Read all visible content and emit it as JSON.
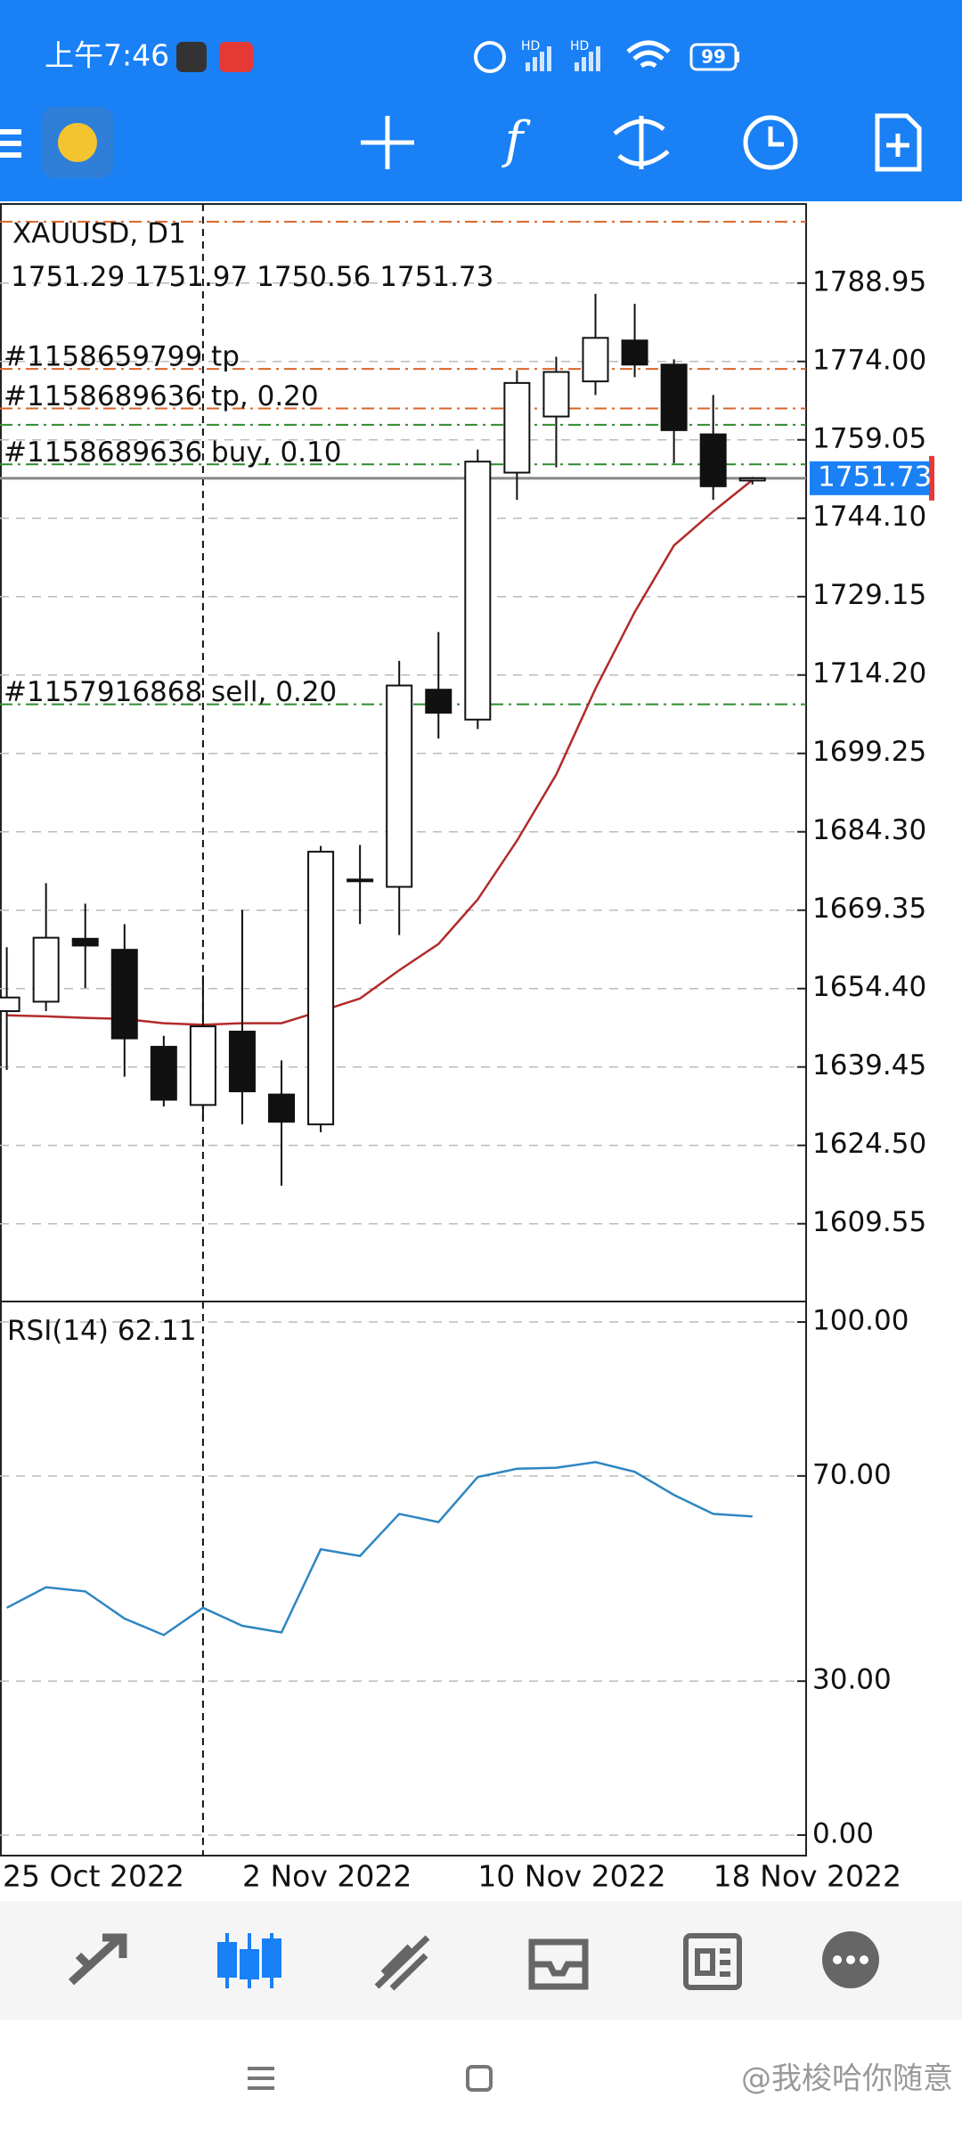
{
  "status_bar": {
    "time": "上午7:46",
    "network": [
      "HD",
      "HD"
    ],
    "battery": "99"
  },
  "chart_data": [
    {
      "type": "candlestick",
      "title": "XAUUSD, D1",
      "categories": [
        "25 Oct 2022",
        null,
        null,
        null,
        null,
        null,
        "2 Nov 2022",
        null,
        null,
        null,
        null,
        null,
        "10 Nov 2022",
        null,
        null,
        null,
        null,
        null,
        "18 Nov 2022",
        null
      ],
      "open": [
        1650.1,
        1651.9,
        1663.9,
        1661.8,
        1643.3,
        1632.2,
        1646.2,
        1634.2,
        1628.5,
        1675.2,
        1673.8,
        1711.4,
        1705.7,
        1752.8,
        1763.5,
        1770.2,
        1778.0,
        1773.4,
        1760.1,
        1751.29
      ],
      "high": [
        1662.3,
        1674.5,
        1670.6,
        1666.7,
        1645.4,
        1656.9,
        1669.4,
        1640.7,
        1681.6,
        1681.8,
        1716.9,
        1722.4,
        1757.2,
        1772.3,
        1774.9,
        1786.9,
        1785.0,
        1774.4,
        1767.6,
        1751.97
      ],
      "low": [
        1638.9,
        1650.1,
        1654.5,
        1637.6,
        1631.9,
        1629.3,
        1628.5,
        1616.8,
        1627.0,
        1666.7,
        1664.6,
        1702.1,
        1703.9,
        1747.6,
        1753.8,
        1767.6,
        1771.0,
        1754.6,
        1747.6,
        1750.56
      ],
      "close": [
        1652.7,
        1664.1,
        1662.6,
        1644.9,
        1633.2,
        1647.2,
        1634.8,
        1629.0,
        1680.5,
        1675.0,
        1712.2,
        1707.0,
        1754.9,
        1769.9,
        1772.0,
        1778.5,
        1773.4,
        1760.9,
        1750.2,
        1751.73
      ],
      "series": [
        {
          "color": "#b22a2a",
          "values": [
            1649.3,
            1649.1,
            1648.8,
            1648.6,
            1647.8,
            1647.5,
            1647.8,
            1647.8,
            1650.1,
            1652.5,
            1657.9,
            1662.9,
            1671.4,
            1682.6,
            1695.2,
            1711.6,
            1726.2,
            1738.9,
            1745.4,
            1751.4
          ]
        }
      ],
      "orders": [
        {
          "price": 1800.65,
          "color": "#d9642a"
        },
        {
          "label": "#1158659799 tp",
          "price": 1772.57,
          "color": "#d9642a"
        },
        {
          "label": "#1158689636 tp, 0.20",
          "price": 1765.03,
          "color": "#d9642a"
        },
        {
          "price": 1761.91,
          "color": "#2e8b2e"
        },
        {
          "label": "#1158689636 buy, 0.10",
          "price": 1754.37,
          "color": "#2e8b2e"
        },
        {
          "label": "#1157916868 sell, 0.20",
          "price": 1708.61,
          "color": "#2e8b2e"
        }
      ],
      "ylim": [
        1594.72,
        1804.03
      ],
      "yticks": [
        1788.95,
        {
          "value": 1774,
          "label": "1774.00"
        },
        1759.05,
        {
          "value": 1744.1,
          "label": "1744.10"
        },
        1729.15,
        {
          "value": 1714.2,
          "label": "1714.20"
        },
        1699.25,
        {
          "value": 1684.3,
          "label": "1684.30"
        },
        1669.35,
        {
          "value": 1654.4,
          "label": "1654.40"
        },
        1639.45,
        {
          "value": 1624.5,
          "label": "1624.50"
        },
        1609.55
      ],
      "grid": true
    },
    {
      "type": "line",
      "title": "RSI(14)",
      "series": [
        {
          "color": "#2e86c1",
          "values": [
            44.3,
            48.3,
            47.5,
            42.2,
            39.0,
            44.3,
            40.8,
            39.5,
            55.7,
            54.4,
            62.6,
            61.0,
            69.8,
            71.4,
            71.6,
            72.7,
            70.8,
            66.3,
            62.6,
            62.11
          ]
        }
      ],
      "ylim": [
        -4,
        104
      ],
      "yticks": [
        {
          "value": 100,
          "label": "100.00"
        },
        {
          "value": 70,
          "label": "70.00"
        },
        {
          "value": 30,
          "label": "30.00"
        },
        {
          "value": 0,
          "label": "0.00"
        }
      ],
      "grid": true
    }
  ],
  "watermark": "@我梭哈你随意"
}
